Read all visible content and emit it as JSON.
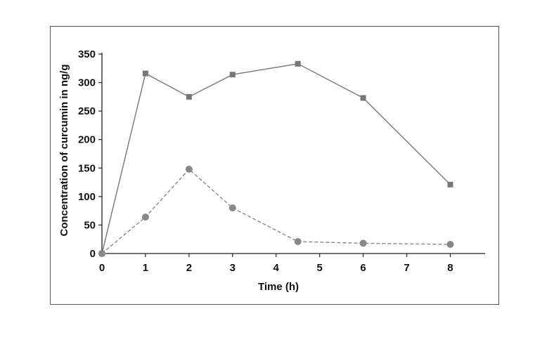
{
  "chart_data": {
    "type": "line",
    "title": "",
    "xlabel": "Time (h)",
    "ylabel": "Concentration of curcumin in ng/g",
    "x_ticks": [
      "0",
      "1",
      "2",
      "3",
      "4",
      "5",
      "6",
      "7",
      "8"
    ],
    "y_ticks": [
      "0",
      "50",
      "100",
      "150",
      "200",
      "250",
      "300",
      "350"
    ],
    "xlim": [
      0,
      8.8
    ],
    "ylim": [
      0,
      350
    ],
    "grid": false,
    "legend": "none",
    "series": [
      {
        "style": "solid",
        "marker": "square",
        "color": "#777777",
        "x": [
          0,
          1,
          2,
          3,
          4.5,
          6,
          8
        ],
        "y": [
          0,
          316,
          275,
          314,
          333,
          273,
          121
        ]
      },
      {
        "style": "dashed",
        "marker": "circle",
        "color": "#888888",
        "x": [
          0,
          1,
          2,
          3,
          4.5,
          6,
          8
        ],
        "y": [
          0,
          64,
          148,
          80,
          21,
          18,
          16
        ]
      }
    ]
  }
}
